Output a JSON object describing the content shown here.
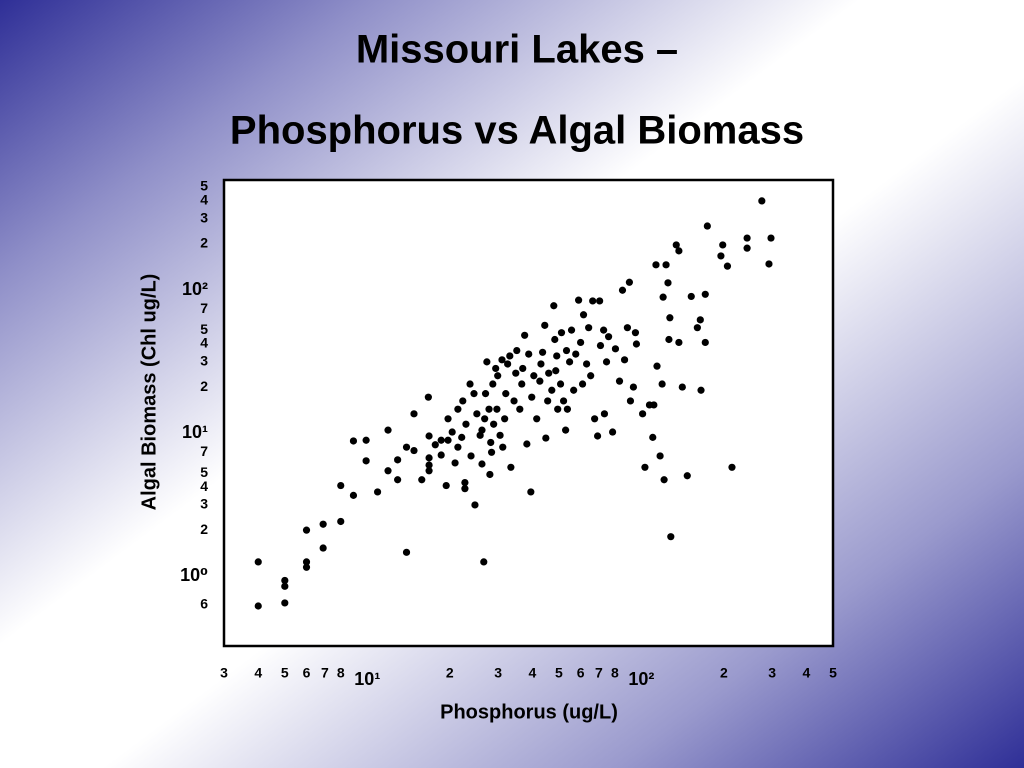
{
  "chart_data": {
    "type": "scatter",
    "title": "Missouri Lakes –",
    "subtitle": "Phosphorus vs Algal Biomass",
    "xlabel": "Phosphorus (ug/L)",
    "ylabel": "Algal Biomass (Chl ug/L)",
    "xlog": true,
    "ylog": true,
    "grid": false,
    "color": "#000000",
    "xlim": [
      3,
      500
    ],
    "ylim": [
      0.31,
      560
    ],
    "xticks": [
      3,
      4,
      5,
      6,
      7,
      8,
      {
        "value": 10,
        "label": "10¹"
      },
      {
        "value": 20,
        "label": "2"
      },
      {
        "value": 30,
        "label": "3"
      },
      {
        "value": 40,
        "label": "4"
      },
      {
        "value": 50,
        "label": "5"
      },
      {
        "value": 60,
        "label": "6"
      },
      {
        "value": 70,
        "label": "7"
      },
      {
        "value": 80,
        "label": "8"
      },
      {
        "value": 100,
        "label": "10²"
      },
      {
        "value": 200,
        "label": "2"
      },
      {
        "value": 300,
        "label": "3"
      },
      {
        "value": 400,
        "label": "4"
      },
      {
        "value": 500,
        "label": "5"
      }
    ],
    "yticks": [
      {
        "value": 0.6,
        "label": "6"
      },
      {
        "value": 1,
        "label": "10⁰"
      },
      2,
      3,
      4,
      5,
      7,
      {
        "value": 10,
        "label": "10¹"
      },
      {
        "value": 20,
        "label": "2"
      },
      {
        "value": 30,
        "label": "3"
      },
      {
        "value": 40,
        "label": "4"
      },
      {
        "value": 50,
        "label": "5"
      },
      {
        "value": 70,
        "label": "7"
      },
      {
        "value": 100,
        "label": "10²"
      },
      {
        "value": 200,
        "label": "2"
      },
      {
        "value": 300,
        "label": "3"
      },
      {
        "value": 400,
        "label": "4"
      },
      {
        "value": 500,
        "label": "5"
      }
    ],
    "x": [
      4.0,
      4.0,
      5.0,
      5.0,
      5.0,
      6.0,
      6.0,
      6.0,
      6.9,
      6.9,
      8.0,
      8.0,
      8.9,
      8.9,
      9.9,
      9.9,
      10.9,
      11.9,
      11.9,
      12.9,
      12.9,
      13.9,
      13.9,
      14.8,
      14.8,
      15.8,
      16.7,
      16.8,
      16.8,
      16.8,
      16.8,
      17.7,
      18.6,
      18.6,
      19.4,
      19.7,
      19.7,
      20.4,
      20.9,
      21.4,
      21.4,
      22.1,
      22.3,
      22.7,
      22.7,
      22.9,
      23.7,
      23.9,
      24.5,
      24.7,
      25.1,
      25.8,
      26.2,
      26.2,
      26.6,
      26.8,
      27.0,
      27.3,
      27.8,
      28.0,
      28.2,
      28.4,
      28.7,
      28.9,
      29.4,
      29.7,
      29.9,
      30.5,
      31.0,
      31.2,
      31.7,
      32.0,
      32.5,
      33.1,
      33.4,
      34.3,
      34.8,
      35.1,
      36.0,
      36.6,
      36.9,
      37.5,
      38.2,
      38.8,
      39.5,
      39.8,
      40.5,
      41.5,
      42.6,
      43.0,
      43.6,
      44.4,
      44.8,
      45.5,
      45.9,
      47.1,
      47.9,
      48.3,
      48.7,
      49.1,
      49.5,
      50.7,
      51.1,
      52.0,
      52.9,
      53.3,
      53.7,
      54.7,
      55.6,
      56.6,
      57.6,
      59.0,
      60.0,
      61.0,
      61.5,
      63.1,
      64.2,
      65.3,
      66.4,
      67.5,
      69.2,
      70.4,
      70.9,
      72.8,
      73.3,
      74.6,
      75.9,
      78.5,
      80.4,
      83.2,
      85.3,
      86.8,
      88.9,
      90.4,
      91.2,
      93.5,
      95.1,
      95.9,
      101,
      103,
      107,
      110,
      111,
      113,
      114,
      117,
      119,
      120,
      121,
      123,
      125,
      126,
      127,
      128,
      134,
      137,
      137,
      141,
      147,
      152,
      160,
      164,
      165,
      171,
      171,
      174,
      195,
      198,
      206,
      214,
      243,
      243,
      275,
      292,
      297
    ],
    "values": [
      1.2,
      0.59,
      0.89,
      0.81,
      0.62,
      1.2,
      1.1,
      2.0,
      2.2,
      1.5,
      4.1,
      2.3,
      8.4,
      3.5,
      8.5,
      6.1,
      3.7,
      10,
      5.2,
      6.2,
      4.5,
      7.6,
      1.4,
      13,
      7.2,
      4.5,
      17,
      9.1,
      6.4,
      5.7,
      5.2,
      7.9,
      8.5,
      6.7,
      4.1,
      12,
      8.5,
      9.7,
      5.9,
      14,
      7.6,
      8.9,
      16,
      4.3,
      3.9,
      11,
      21,
      6.6,
      18,
      3.0,
      13,
      9.2,
      10,
      5.8,
      1.2,
      12,
      18,
      30,
      14,
      4.9,
      8.2,
      7.0,
      21,
      11,
      27,
      14,
      24,
      9.2,
      31,
      7.6,
      12,
      18,
      29,
      33,
      5.5,
      16,
      25,
      36,
      14,
      21,
      27,
      46,
      8.0,
      34,
      3.7,
      17,
      24,
      12,
      22,
      29,
      35,
      54,
      8.8,
      16,
      25,
      19,
      74,
      43,
      26,
      33,
      14,
      21,
      48,
      16,
      10,
      36,
      14,
      30,
      50,
      19,
      34,
      81,
      41,
      21,
      64,
      29,
      52,
      24,
      80,
      12,
      9.1,
      80,
      39,
      50,
      13,
      30,
      45,
      9.7,
      37,
      22,
      95,
      31,
      52,
      108,
      16,
      20,
      48,
      40,
      13,
      5.5,
      15,
      8.9,
      15,
      143,
      28,
      6.6,
      21,
      85,
      4.5,
      143,
      107,
      43,
      61,
      1.8,
      197,
      179,
      41,
      20,
      4.8,
      86,
      52,
      59,
      19,
      89,
      41,
      267,
      165,
      197,
      140,
      5.5,
      220,
      187,
      400,
      145,
      220
    ]
  }
}
